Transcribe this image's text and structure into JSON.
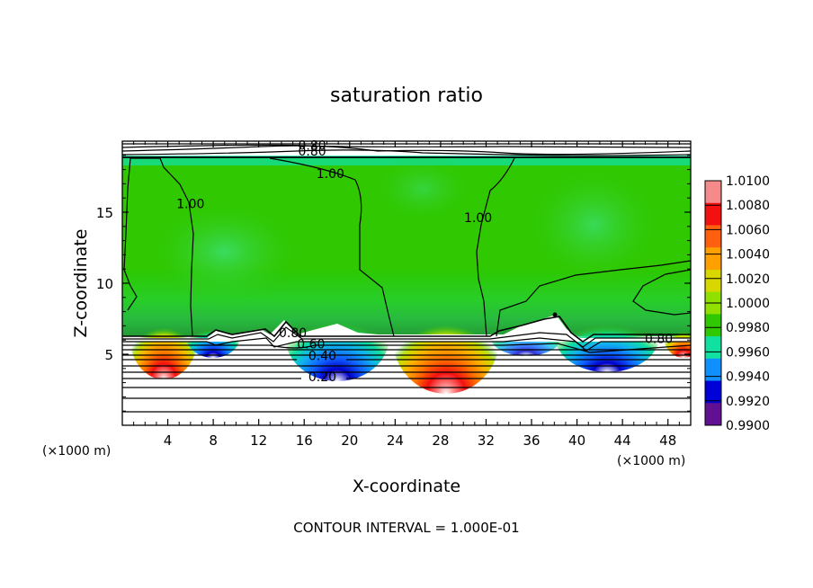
{
  "chart_data": {
    "type": "heatmap",
    "title": "saturation ratio",
    "xlabel": "X-coordinate",
    "ylabel": "Z-coordinate",
    "x_unit_left": "(×1000 m)",
    "x_unit_right": "(×1000 m)",
    "xlim": [
      0,
      50
    ],
    "ylim": [
      0,
      20
    ],
    "x_ticks": [
      4,
      8,
      12,
      16,
      20,
      24,
      28,
      32,
      36,
      40,
      44,
      48
    ],
    "y_ticks": [
      5,
      10,
      15
    ],
    "footer": "CONTOUR INTERVAL = 1.000E-01",
    "colorbar": {
      "labels": [
        "1.0100",
        "1.0080",
        "1.0060",
        "1.0040",
        "1.0020",
        "1.0000",
        "0.9980",
        "0.9960",
        "0.9940",
        "0.9920",
        "0.9900"
      ],
      "colors": [
        "#f48a8a",
        "#f21010",
        "#ff6010",
        "#ffa000",
        "#d8d800",
        "#90e000",
        "#30c800",
        "#10e0a0",
        "#1090ff",
        "#0000d8",
        "#601090"
      ]
    },
    "contour_labels": [
      {
        "text": "0.80",
        "x": 16.7,
        "y": 19.4
      },
      {
        "text": "0.80",
        "x": 16.7,
        "y": 19.0
      },
      {
        "text": "1.00",
        "x": 18.3,
        "y": 17.4
      },
      {
        "text": "1.00",
        "x": 6.0,
        "y": 15.3
      },
      {
        "text": "1.00",
        "x": 31.3,
        "y": 14.3
      },
      {
        "text": "0.80",
        "x": 15.0,
        "y": 6.2
      },
      {
        "text": "0.60",
        "x": 16.6,
        "y": 5.4
      },
      {
        "text": "0.40",
        "x": 17.6,
        "y": 4.6
      },
      {
        "text": "0.20",
        "x": 17.6,
        "y": 3.1
      },
      {
        "text": "0.80",
        "x": 47.2,
        "y": 5.8
      }
    ]
  }
}
